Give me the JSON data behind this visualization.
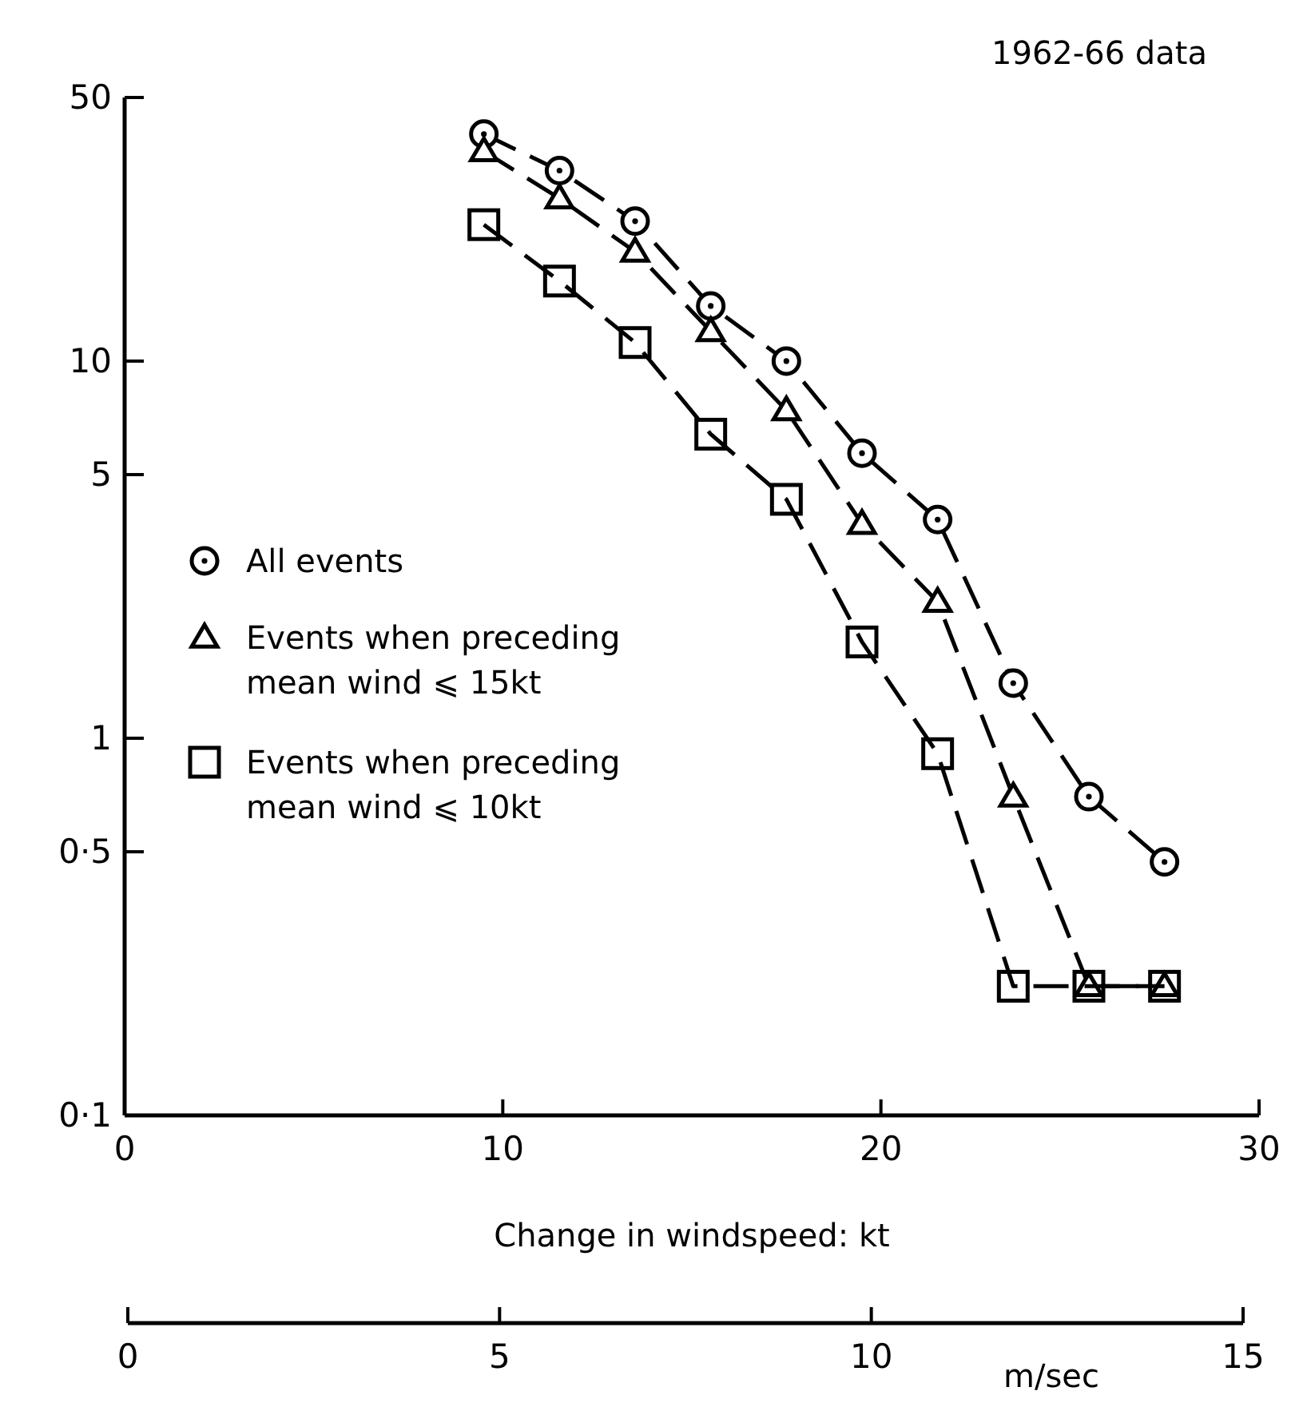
{
  "chart_data": {
    "type": "line",
    "title": "1962-66 data",
    "xlabel": "Change in windspeed: kt",
    "x2label": "m/sec",
    "x": [
      9.5,
      11.5,
      13.5,
      15.5,
      17.5,
      19.5,
      21.5,
      23.5,
      25.5,
      27.5
    ],
    "series": [
      {
        "name": "All events",
        "color": "#000000",
        "marker": "circle",
        "values": [
          40,
          32,
          23.5,
          14,
          10,
          5.7,
          3.8,
          1.4,
          0.7,
          0.47
        ]
      },
      {
        "name": "Events when preceding mean wind ⩽ 15kt",
        "color": "#000000",
        "marker": "triangle",
        "values": [
          36,
          27,
          19.5,
          12,
          7.4,
          3.7,
          2.3,
          0.7,
          0.22,
          0.22
        ]
      },
      {
        "name": "Events when preceding mean wind ⩽ 10kt",
        "color": "#000000",
        "marker": "square",
        "values": [
          23,
          16.3,
          11.2,
          6.4,
          4.3,
          1.8,
          0.91,
          0.22,
          0.22,
          0.22
        ]
      }
    ],
    "xlim": [
      0,
      30
    ],
    "xticks": [
      0,
      10,
      20,
      30
    ],
    "x2lim": [
      0,
      15
    ],
    "x2ticks": [
      0,
      5,
      10,
      15
    ],
    "ylim": [
      0.1,
      50
    ],
    "yticks": [
      {
        "value": 0.1,
        "label": "0·1"
      },
      {
        "value": 0.5,
        "label": "0·5"
      },
      1,
      5,
      10,
      50
    ],
    "log": "y",
    "legend": "left",
    "line_style": "dashed"
  }
}
